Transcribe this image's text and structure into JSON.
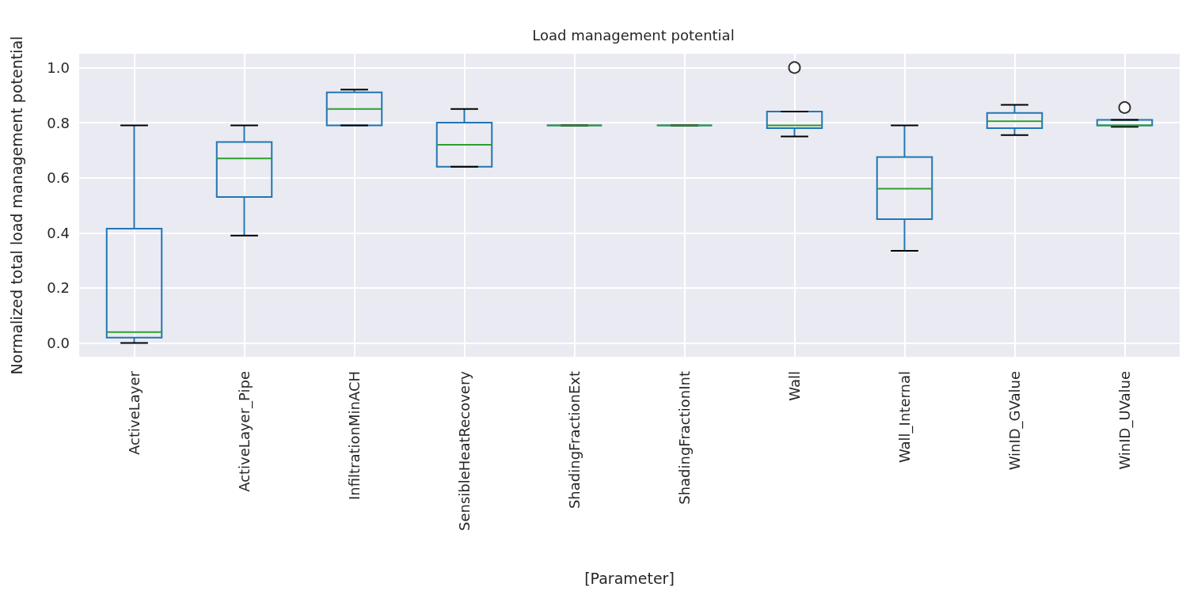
{
  "chart_data": {
    "type": "box",
    "title": "Load management potential",
    "xlabel": "[Parameter]",
    "ylabel": "Normalized total load management potential",
    "categories": [
      "ActiveLayer",
      "ActiveLayer_Pipe",
      "InfiltrationMinACH",
      "SensibleHeatRecovery",
      "ShadingFractionExt",
      "ShadingFractionInt",
      "Wall",
      "Wall_Internal",
      "WinID_GValue",
      "WinID_UValue"
    ],
    "color": "#1f77b4",
    "boxes": [
      {
        "low": 0.0,
        "q1": 0.02,
        "median": 0.04,
        "q3": 0.415,
        "high": 0.79
      },
      {
        "low": 0.39,
        "q1": 0.53,
        "median": 0.67,
        "q3": 0.73,
        "high": 0.79
      },
      {
        "low": 0.79,
        "q1": 0.79,
        "median": 0.85,
        "q3": 0.91,
        "high": 0.92
      },
      {
        "low": 0.64,
        "q1": 0.64,
        "median": 0.72,
        "q3": 0.8,
        "high": 0.85
      },
      {
        "low": 0.79,
        "q1": 0.79,
        "median": 0.79,
        "q3": 0.79,
        "high": 0.79
      },
      {
        "low": 0.79,
        "q1": 0.79,
        "median": 0.79,
        "q3": 0.79,
        "high": 0.79
      },
      {
        "low": 0.75,
        "q1": 0.78,
        "median": 0.79,
        "q3": 0.84,
        "high": 0.84,
        "outliers": [
          1.0
        ]
      },
      {
        "low": 0.335,
        "q1": 0.45,
        "median": 0.56,
        "q3": 0.675,
        "high": 0.79
      },
      {
        "low": 0.755,
        "q1": 0.78,
        "median": 0.805,
        "q3": 0.835,
        "high": 0.865
      },
      {
        "low": 0.785,
        "q1": 0.79,
        "median": 0.79,
        "q3": 0.81,
        "high": 0.81,
        "outliers": [
          0.855
        ]
      }
    ],
    "ylim": [
      -0.05,
      1.05
    ],
    "yticks": [
      {
        "value": 0,
        "label": "0.0"
      },
      {
        "value": 0.2,
        "label": "0.2"
      },
      {
        "value": 0.4,
        "label": "0.4"
      },
      {
        "value": 0.6,
        "label": "0.6"
      },
      {
        "value": 0.8,
        "label": "0.8"
      },
      {
        "value": 1,
        "label": "1.0"
      }
    ],
    "grid": true,
    "legend": false
  }
}
